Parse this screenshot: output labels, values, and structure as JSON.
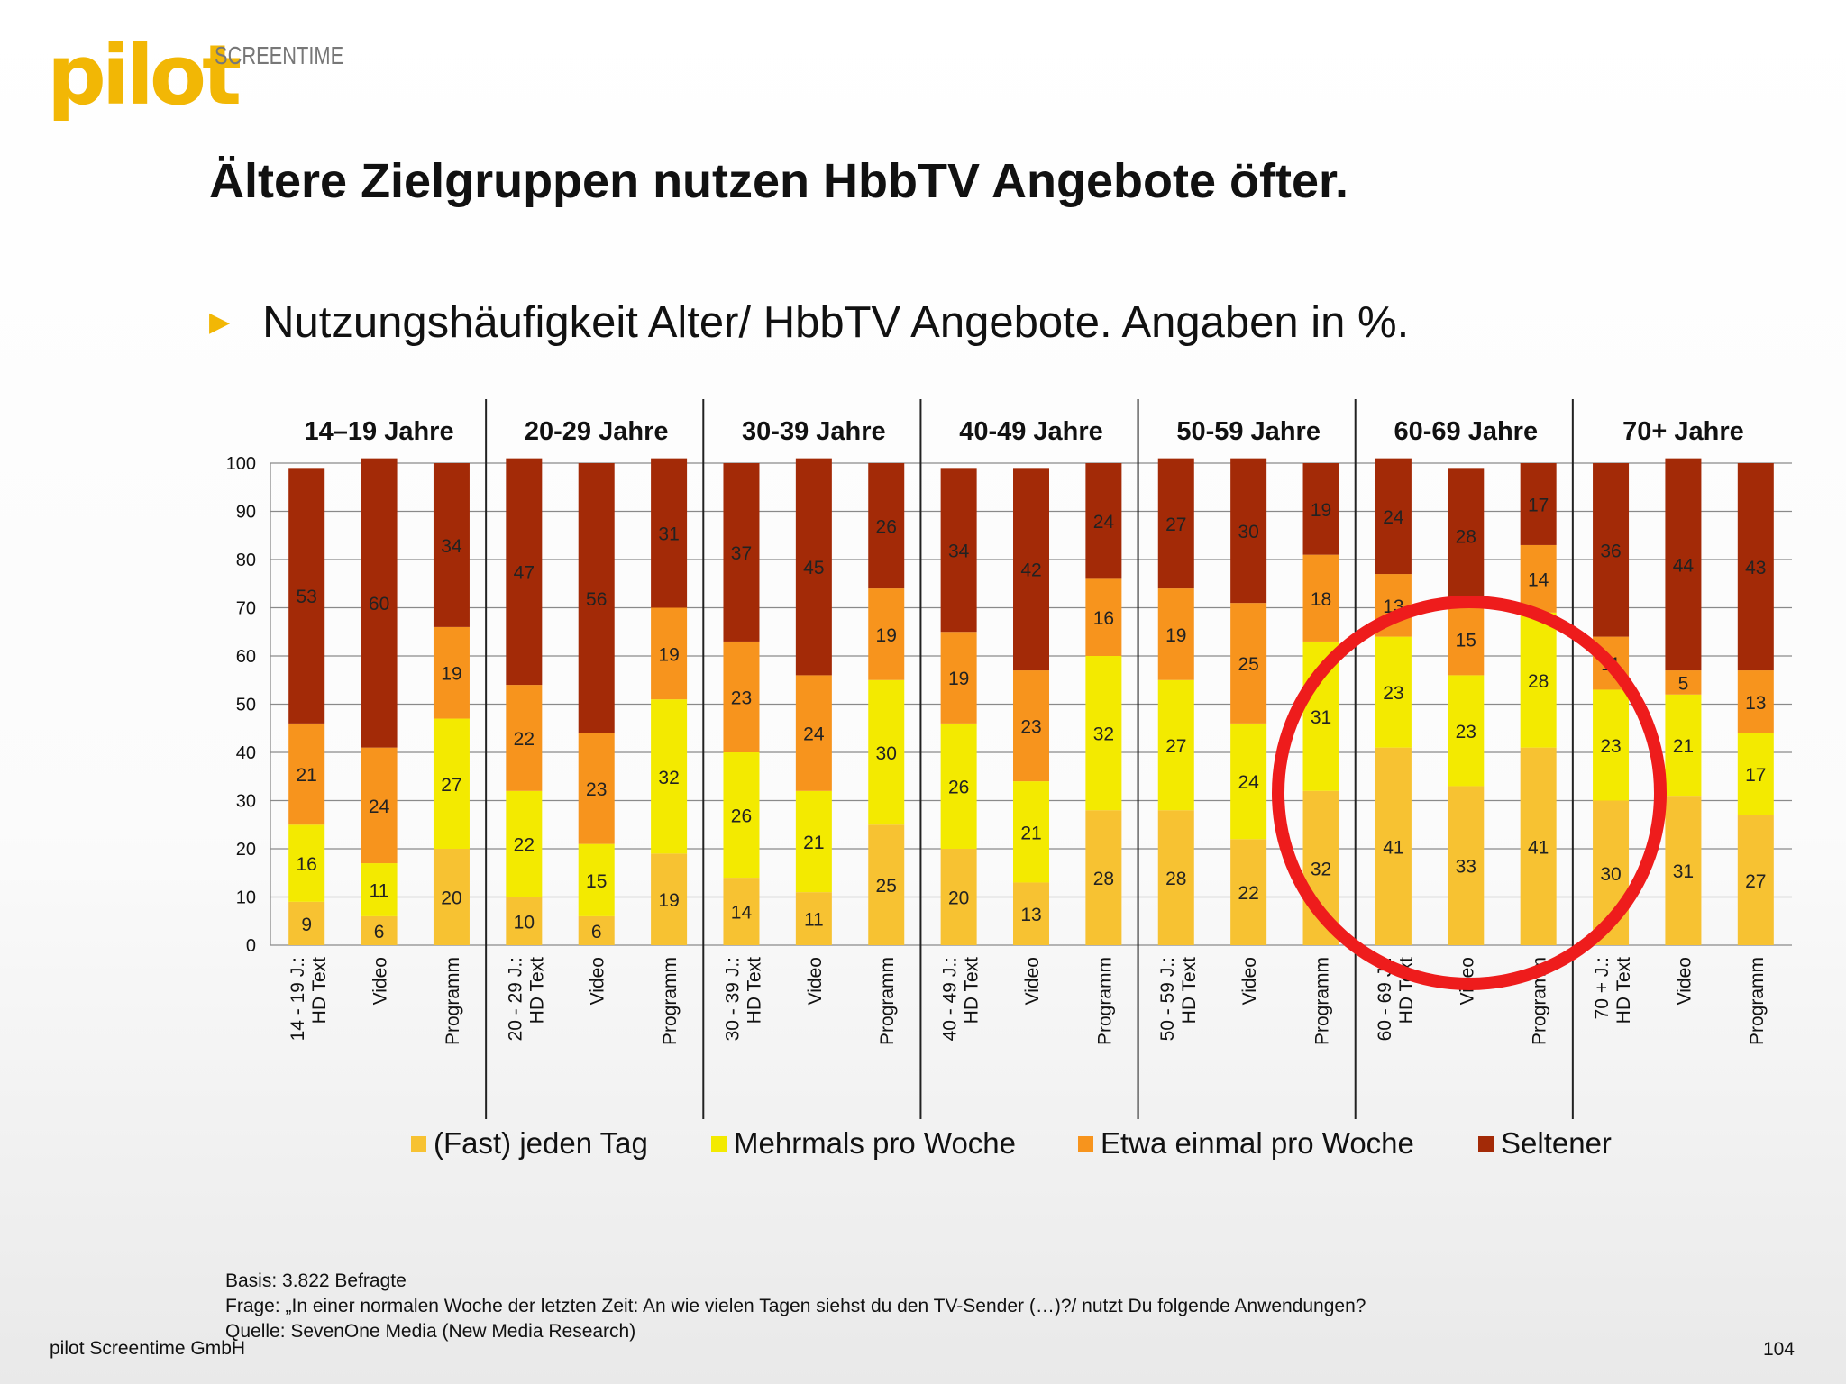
{
  "logo": {
    "word": "pilot",
    "sub": "SCREENTIME"
  },
  "title": "Ältere Zielgruppen nutzen HbbTV Angebote öfter.",
  "bullet": "Nutzungshäufigkeit  Alter/ HbbTV Angebote. Angaben in %.",
  "colors": {
    "fast_jeden_tag": "#f7c232",
    "mehrmals_pro_woche": "#f3ea00",
    "etwa_einmal_pro_woche": "#f7941d",
    "seltener": "#a32a07",
    "highlight_circle": "#ee1c1c"
  },
  "chart_data": {
    "type": "bar",
    "stacked": true,
    "ylim": [
      0,
      100
    ],
    "yticks": [
      0,
      10,
      20,
      30,
      40,
      50,
      60,
      70,
      80,
      90,
      100
    ],
    "grid": true,
    "legend_position": "bottom",
    "groups": [
      "14–19 Jahre",
      "20-29 Jahre",
      "30-39 Jahre",
      "40-49 Jahre",
      "50-59 Jahre",
      "60-69 Jahre",
      "70+ Jahre"
    ],
    "categories": [
      "14 - 19 J.: HD Text",
      "Video",
      "Programm",
      "20 - 29 J.: HD Text",
      "Video",
      "Programm",
      "30 - 39 J.: HD Text",
      "Video",
      "Programm",
      "40 - 49 J.: HD Text",
      "Video",
      "Programm",
      "50 - 59 J.: HD Text",
      "Video",
      "Programm",
      "60 - 69 J.: HD Text",
      "Video",
      "Programm",
      "70 + J.: HD Text",
      "Video",
      "Programm"
    ],
    "series": [
      {
        "name": "(Fast) jeden Tag",
        "values": [
          9,
          6,
          20,
          10,
          6,
          19,
          14,
          11,
          25,
          20,
          13,
          28,
          28,
          22,
          32,
          41,
          33,
          41,
          30,
          31,
          27
        ]
      },
      {
        "name": "Mehrmals pro Woche",
        "values": [
          16,
          11,
          27,
          22,
          15,
          32,
          26,
          21,
          30,
          26,
          21,
          32,
          27,
          24,
          31,
          23,
          23,
          28,
          23,
          21,
          17
        ]
      },
      {
        "name": "Etwa einmal pro Woche",
        "values": [
          21,
          24,
          19,
          22,
          23,
          19,
          23,
          24,
          19,
          19,
          23,
          16,
          19,
          25,
          18,
          13,
          15,
          14,
          11,
          5,
          13
        ]
      },
      {
        "name": "Seltener",
        "values": [
          53,
          60,
          34,
          47,
          56,
          31,
          37,
          45,
          26,
          34,
          42,
          24,
          27,
          30,
          19,
          24,
          28,
          17,
          36,
          44,
          43
        ]
      }
    ]
  },
  "footer": {
    "basis": "Basis: 3.822 Befragte",
    "frage": "Frage: „In einer normalen Woche der letzten Zeit: An wie vielen Tagen siehst du den TV-Sender (…)?/ nutzt Du folgende Anwendungen?",
    "quelle": "Quelle: SevenOne Media (New Media Research)",
    "company": "pilot Screentime GmbH",
    "page": "104"
  }
}
